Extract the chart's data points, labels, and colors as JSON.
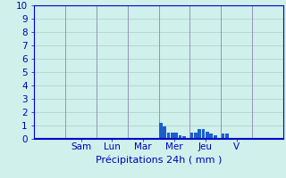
{
  "title": "",
  "xlabel": "Précipitations 24h ( mm )",
  "ylabel": "",
  "background_color": "#cff0eb",
  "plot_bg_color": "#cff0eb",
  "bar_color": "#1a5fcc",
  "ylim": [
    0,
    10
  ],
  "yticks": [
    0,
    1,
    2,
    3,
    4,
    5,
    6,
    7,
    8,
    9,
    10
  ],
  "day_labels": [
    "Sam",
    "Lun",
    "Mar",
    "Mer",
    "Jeu",
    "V"
  ],
  "n_days": 7,
  "bars_per_day": 8,
  "bar_values": [
    0,
    0,
    0,
    0,
    0,
    0,
    0,
    0,
    0,
    0,
    0,
    0,
    0,
    0,
    0,
    0,
    0,
    0,
    0,
    0,
    0,
    0,
    0,
    0,
    0,
    0,
    0,
    0,
    0,
    0,
    0,
    0,
    1.2,
    0.95,
    0.5,
    0.5,
    0.5,
    0.3,
    0.2,
    0,
    0.5,
    0.5,
    0.75,
    0.75,
    0.55,
    0.4,
    0.3,
    0,
    0.4,
    0.4,
    0,
    0,
    0,
    0,
    0,
    0
  ],
  "grid_color": "#b0cccc",
  "tick_color": "#0000bb",
  "label_color": "#0000bb",
  "axis_color": "#0000cc",
  "xlabel_fontsize": 8,
  "tick_fontsize": 7.5,
  "vline_color": "#8888aa"
}
